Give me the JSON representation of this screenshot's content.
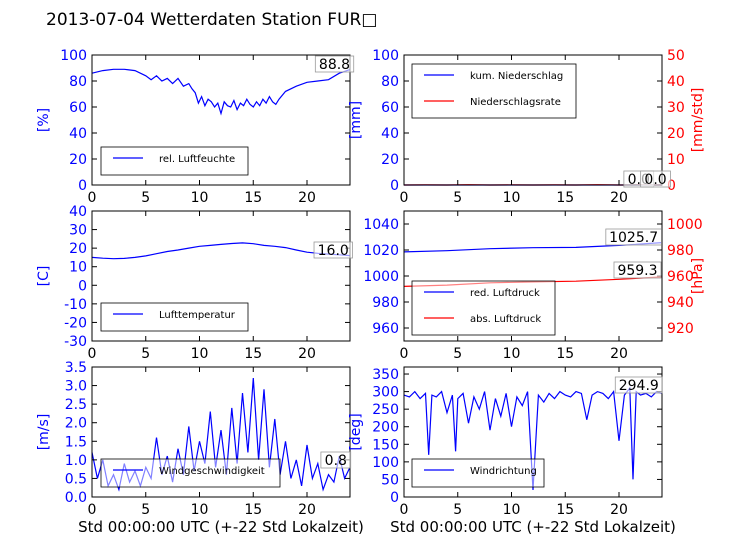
{
  "title": "2013-07-04 Wetterdaten Station FUR□",
  "colors": {
    "blue": "#0000ff",
    "red": "#ff0000",
    "black": "#000000"
  },
  "chart_data": [
    {
      "type": "line",
      "ylabel": "[%]",
      "xlabel": "",
      "xlim": [
        0,
        24
      ],
      "ylim": [
        0,
        100
      ],
      "xticks": [
        0,
        5,
        10,
        15,
        20
      ],
      "yticks": [
        0,
        20,
        40,
        60,
        80,
        100
      ],
      "legend": "bottom-left",
      "series": [
        {
          "name": "rel. Luftfeuchte",
          "color": "#0000ff",
          "axis": "left",
          "x": [
            0,
            1,
            2,
            3,
            4,
            5,
            5.5,
            6,
            6.5,
            7,
            7.5,
            8,
            8.5,
            9,
            9.3,
            9.6,
            9.9,
            10.2,
            10.5,
            10.8,
            11.1,
            11.4,
            11.7,
            12,
            12.3,
            12.6,
            12.9,
            13.2,
            13.5,
            13.8,
            14.1,
            14.4,
            14.7,
            15,
            15.3,
            15.6,
            15.9,
            16.2,
            16.5,
            16.8,
            17.1,
            17.4,
            18,
            19,
            20,
            21,
            22,
            23,
            24
          ],
          "values": [
            86,
            88,
            89,
            89,
            88,
            84,
            81,
            84,
            80,
            82,
            78,
            82,
            76,
            78,
            74,
            71,
            63,
            68,
            61,
            66,
            64,
            60,
            63,
            55,
            64,
            61,
            60,
            65,
            58,
            63,
            61,
            66,
            62,
            60,
            64,
            61,
            66,
            63,
            68,
            64,
            62,
            66,
            72,
            76,
            79,
            80,
            81,
            86,
            88.8
          ]
        }
      ],
      "annotations": [
        {
          "text": "88.8"
        }
      ]
    },
    {
      "type": "line",
      "ylabel": "[mm]",
      "ylabel2": "[mm/std]",
      "xlabel": "",
      "xlim": [
        0,
        24
      ],
      "ylim": [
        0,
        100
      ],
      "ylim2": [
        0,
        50
      ],
      "xticks": [
        0,
        5,
        10,
        15,
        20
      ],
      "yticks": [
        0,
        20,
        40,
        60,
        80,
        100
      ],
      "yticks2": [
        0,
        10,
        20,
        30,
        40,
        50
      ],
      "legend": "top-left",
      "series": [
        {
          "name": "kum. Niederschlag",
          "color": "#0000ff",
          "axis": "left",
          "x": [
            0,
            24
          ],
          "values": [
            0,
            0
          ]
        },
        {
          "name": "Niederschlagsrate",
          "color": "#ff0000",
          "axis": "right",
          "x": [
            0,
            2,
            4,
            6,
            8,
            10,
            12,
            14,
            16,
            18,
            20,
            22,
            24
          ],
          "values": [
            0,
            0.05,
            0,
            0.1,
            0,
            0.05,
            0,
            0.05,
            0,
            0.1,
            0,
            0.05,
            0
          ]
        }
      ],
      "annotations": [
        {
          "text": "0.0"
        },
        {
          "text": "0.0"
        }
      ]
    },
    {
      "type": "line",
      "ylabel": "[C]",
      "xlabel": "",
      "xlim": [
        0,
        24
      ],
      "ylim": [
        -30,
        40
      ],
      "xticks": [
        0,
        5,
        10,
        15,
        20
      ],
      "yticks": [
        -30,
        -20,
        -10,
        0,
        10,
        20,
        30,
        40
      ],
      "legend": "bottom-left",
      "series": [
        {
          "name": "Lufttemperatur",
          "color": "#0000ff",
          "axis": "left",
          "x": [
            0,
            1,
            2,
            3,
            4,
            5,
            6,
            7,
            8,
            9,
            10,
            11,
            12,
            13,
            14,
            15,
            16,
            17,
            18,
            19,
            20,
            21,
            22,
            23,
            24
          ],
          "values": [
            15,
            14.6,
            14.3,
            14.5,
            15,
            15.8,
            17,
            18.2,
            19,
            20,
            21,
            21.5,
            22,
            22.5,
            22.8,
            22.4,
            21.5,
            21,
            20.3,
            19,
            17.8,
            17.2,
            16.8,
            16.4,
            16.0
          ]
        }
      ],
      "annotations": [
        {
          "text": "16.0"
        }
      ]
    },
    {
      "type": "line",
      "ylabel": "",
      "ylabel2": "[hPa]",
      "xlabel": "",
      "xlim": [
        0,
        24
      ],
      "ylim": [
        950,
        1050
      ],
      "ylim2": [
        910,
        1010
      ],
      "xticks": [
        0,
        5,
        10,
        15,
        20
      ],
      "yticks": [
        960,
        980,
        1000,
        1020,
        1040
      ],
      "yticks2": [
        920,
        940,
        960,
        980,
        1000
      ],
      "legend": "bottom-left",
      "series": [
        {
          "name": "red. Luftdruck",
          "color": "#0000ff",
          "axis": "left",
          "x": [
            0,
            4,
            8,
            12,
            16,
            20,
            24
          ],
          "values": [
            1018.5,
            1019.5,
            1021,
            1021.8,
            1022,
            1023.5,
            1025.7
          ]
        },
        {
          "name": "abs. Luftdruck",
          "color": "#ff0000",
          "axis": "right",
          "x": [
            0,
            4,
            8,
            12,
            16,
            20,
            24
          ],
          "values": [
            952,
            953,
            954.8,
            955.5,
            956,
            957.5,
            959.3
          ]
        }
      ],
      "annotations": [
        {
          "text": "1025.7"
        },
        {
          "text": "959.3"
        }
      ]
    },
    {
      "type": "line",
      "ylabel": "[m/s]",
      "xlabel": "Std 00:00:00 UTC (+-22 Std Lokalzeit)",
      "xlim": [
        0,
        24
      ],
      "ylim": [
        0,
        3.5
      ],
      "xticks": [
        0,
        5,
        10,
        15,
        20
      ],
      "yticks": [
        0.0,
        0.5,
        1.0,
        1.5,
        2.0,
        2.5,
        3.0,
        3.5
      ],
      "legend": "bottom-left",
      "series": [
        {
          "name": "Windgeschwindigkeit",
          "color": "#0000ff",
          "axis": "left",
          "x": [
            0,
            0.5,
            1,
            1.5,
            2,
            2.5,
            3,
            3.5,
            4,
            4.5,
            5,
            5.5,
            6,
            6.5,
            7,
            7.5,
            8,
            8.5,
            9,
            9.5,
            10,
            10.5,
            11,
            11.5,
            12,
            12.5,
            13,
            13.5,
            14,
            14.5,
            15,
            15.5,
            16,
            16.5,
            17,
            17.5,
            18,
            18.5,
            19,
            19.5,
            20,
            20.5,
            21,
            21.5,
            22,
            22.5,
            23,
            23.5,
            24
          ],
          "values": [
            1.2,
            0.5,
            1.0,
            0.3,
            0.6,
            0.2,
            0.9,
            0.4,
            0.7,
            0.3,
            0.8,
            0.5,
            1.6,
            0.6,
            1.1,
            0.4,
            1.3,
            0.6,
            1.9,
            0.7,
            1.5,
            0.9,
            2.3,
            0.8,
            1.8,
            0.6,
            2.4,
            0.9,
            2.8,
            1.2,
            3.2,
            1.0,
            2.9,
            0.8,
            2.1,
            0.6,
            1.5,
            0.5,
            1.0,
            0.3,
            1.4,
            0.5,
            0.9,
            0.2,
            0.6,
            0.4,
            1.1,
            0.5,
            0.8
          ]
        }
      ],
      "annotations": [
        {
          "text": "0.8"
        }
      ]
    },
    {
      "type": "line",
      "ylabel": "[deg]",
      "xlabel": "Std 00:00:00 UTC (+-22 Std Lokalzeit)",
      "xlim": [
        0,
        24
      ],
      "ylim": [
        0,
        370
      ],
      "xticks": [
        0,
        5,
        10,
        15,
        20
      ],
      "yticks": [
        0,
        50,
        100,
        150,
        200,
        250,
        300,
        350
      ],
      "legend": "bottom-left",
      "series": [
        {
          "name": "Windrichtung",
          "color": "#0000ff",
          "axis": "left",
          "x": [
            0,
            0.5,
            1,
            1.5,
            2,
            2.3,
            2.6,
            3,
            3.5,
            4,
            4.5,
            4.8,
            5,
            5.5,
            6,
            6.5,
            7,
            7.5,
            8,
            8.5,
            9,
            9.5,
            10,
            10.5,
            11,
            11.5,
            12,
            12.5,
            13,
            13.5,
            14,
            14.5,
            15,
            15.5,
            16,
            16.5,
            17,
            17.5,
            18,
            18.5,
            19,
            19.5,
            20,
            20.5,
            21,
            21.3,
            21.6,
            22,
            22.5,
            23,
            23.5,
            24
          ],
          "values": [
            290,
            285,
            300,
            280,
            295,
            120,
            290,
            285,
            300,
            240,
            290,
            130,
            280,
            295,
            210,
            285,
            250,
            300,
            190,
            280,
            230,
            295,
            200,
            285,
            260,
            300,
            20,
            290,
            270,
            295,
            280,
            300,
            290,
            285,
            300,
            295,
            220,
            290,
            300,
            295,
            280,
            300,
            160,
            290,
            310,
            50,
            300,
            290,
            295,
            285,
            300,
            294.9
          ]
        }
      ],
      "annotations": [
        {
          "text": "294.9"
        }
      ]
    }
  ]
}
